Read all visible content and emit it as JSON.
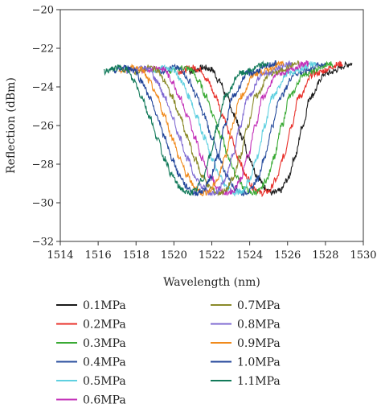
{
  "chart_data": {
    "type": "line",
    "title": "",
    "xlabel": "Wavelength (nm)",
    "ylabel": "Reflection (dBm)",
    "xlim": [
      1514,
      1530
    ],
    "ylim": [
      -32,
      -20
    ],
    "xticks": [
      "1514",
      "1516",
      "1518",
      "1520",
      "1522",
      "1524",
      "1526",
      "1528",
      "1530"
    ],
    "yticks": [
      "−20",
      "−22",
      "−24",
      "−26",
      "−28",
      "−30",
      "−32"
    ],
    "grid": false,
    "legend_position": "below",
    "series": [
      {
        "name": "0.1MPa",
        "color": "#1a1a1a",
        "x": [
          1520.8,
          1521.6,
          1522.0,
          1522.4,
          1522.8,
          1523.2,
          1523.6,
          1524.0,
          1524.4,
          1524.8,
          1525.2,
          1525.6,
          1526.0,
          1526.4,
          1526.8,
          1527.2,
          1528.0,
          1529.4
        ],
        "y": [
          -23.2,
          -23.0,
          -23.1,
          -23.7,
          -24.5,
          -25.5,
          -26.6,
          -27.7,
          -28.6,
          -29.2,
          -29.5,
          -29.4,
          -28.8,
          -27.6,
          -26.0,
          -24.5,
          -23.3,
          -22.8
        ]
      },
      {
        "name": "0.2MPa",
        "color": "#e8302a",
        "x": [
          1520.2,
          1521.0,
          1521.4,
          1521.8,
          1522.2,
          1522.6,
          1523.0,
          1523.4,
          1523.8,
          1524.2,
          1524.6,
          1525.0,
          1525.4,
          1525.8,
          1526.2,
          1526.6,
          1527.4,
          1528.9
        ],
        "y": [
          -23.2,
          -23.0,
          -23.1,
          -23.7,
          -24.5,
          -25.5,
          -26.6,
          -27.7,
          -28.6,
          -29.2,
          -29.5,
          -29.4,
          -28.8,
          -27.6,
          -26.0,
          -24.5,
          -23.3,
          -22.8
        ]
      },
      {
        "name": "0.3MPa",
        "color": "#3aaa35",
        "x": [
          1519.7,
          1520.5,
          1520.9,
          1521.3,
          1521.7,
          1522.1,
          1522.5,
          1522.9,
          1523.3,
          1523.7,
          1524.1,
          1524.5,
          1524.9,
          1525.3,
          1525.7,
          1526.1,
          1526.9,
          1528.4
        ],
        "y": [
          -23.2,
          -23.0,
          -23.1,
          -23.7,
          -24.5,
          -25.5,
          -26.6,
          -27.7,
          -28.6,
          -29.2,
          -29.5,
          -29.4,
          -28.8,
          -27.6,
          -26.0,
          -24.5,
          -23.3,
          -22.8
        ]
      },
      {
        "name": "0.4MPa",
        "color": "#2a4f9e",
        "x": [
          1519.2,
          1520.0,
          1520.4,
          1520.8,
          1521.2,
          1521.6,
          1522.0,
          1522.4,
          1522.8,
          1523.2,
          1523.6,
          1524.0,
          1524.4,
          1524.8,
          1525.2,
          1525.6,
          1526.4,
          1528.0
        ],
        "y": [
          -23.2,
          -23.0,
          -23.1,
          -23.7,
          -24.5,
          -25.5,
          -26.6,
          -27.7,
          -28.6,
          -29.2,
          -29.5,
          -29.4,
          -28.8,
          -27.6,
          -26.0,
          -24.5,
          -23.3,
          -22.8
        ]
      },
      {
        "name": "0.5MPa",
        "color": "#5fd0e0",
        "x": [
          1518.8,
          1519.6,
          1520.0,
          1520.4,
          1520.8,
          1521.2,
          1521.6,
          1522.0,
          1522.4,
          1522.8,
          1523.2,
          1523.6,
          1524.0,
          1524.4,
          1524.8,
          1525.2,
          1526.0,
          1527.5
        ],
        "y": [
          -23.2,
          -23.0,
          -23.1,
          -23.7,
          -24.5,
          -25.5,
          -26.6,
          -27.7,
          -28.6,
          -29.2,
          -29.5,
          -29.4,
          -28.8,
          -27.6,
          -26.0,
          -24.5,
          -23.3,
          -22.8
        ]
      },
      {
        "name": "0.6MPa",
        "color": "#c330b8",
        "x": [
          1518.3,
          1519.1,
          1519.5,
          1519.9,
          1520.3,
          1520.7,
          1521.1,
          1521.5,
          1521.9,
          1522.3,
          1522.7,
          1523.1,
          1523.5,
          1523.9,
          1524.3,
          1524.7,
          1525.5,
          1527.1
        ],
        "y": [
          -23.2,
          -23.0,
          -23.1,
          -23.7,
          -24.5,
          -25.5,
          -26.6,
          -27.7,
          -28.6,
          -29.2,
          -29.5,
          -29.4,
          -28.8,
          -27.6,
          -26.0,
          -24.5,
          -23.3,
          -22.8
        ]
      },
      {
        "name": "0.7MPa",
        "color": "#8a8a2a",
        "x": [
          1517.9,
          1518.7,
          1519.1,
          1519.5,
          1519.9,
          1520.3,
          1520.7,
          1521.1,
          1521.5,
          1521.9,
          1522.3,
          1522.7,
          1523.1,
          1523.5,
          1523.9,
          1524.3,
          1525.1,
          1526.6
        ],
        "y": [
          -23.2,
          -23.0,
          -23.1,
          -23.7,
          -24.5,
          -25.5,
          -26.6,
          -27.7,
          -28.6,
          -29.2,
          -29.5,
          -29.4,
          -28.8,
          -27.6,
          -26.0,
          -24.5,
          -23.3,
          -22.8
        ]
      },
      {
        "name": "0.8MPa",
        "color": "#7f6ad2",
        "x": [
          1517.5,
          1518.3,
          1518.7,
          1519.1,
          1519.5,
          1519.9,
          1520.3,
          1520.7,
          1521.1,
          1521.5,
          1521.9,
          1522.3,
          1522.7,
          1523.1,
          1523.5,
          1523.9,
          1524.7,
          1526.2
        ],
        "y": [
          -23.2,
          -23.0,
          -23.1,
          -23.7,
          -24.5,
          -25.5,
          -26.6,
          -27.7,
          -28.6,
          -29.2,
          -29.5,
          -29.4,
          -28.8,
          -27.6,
          -26.0,
          -24.5,
          -23.3,
          -22.8
        ]
      },
      {
        "name": "0.9MPa",
        "color": "#f08a1c",
        "x": [
          1517.1,
          1517.9,
          1518.3,
          1518.7,
          1519.1,
          1519.5,
          1519.9,
          1520.3,
          1520.7,
          1521.1,
          1521.5,
          1521.9,
          1522.3,
          1522.7,
          1523.1,
          1523.5,
          1524.3,
          1525.8
        ],
        "y": [
          -23.2,
          -23.0,
          -23.1,
          -23.7,
          -24.5,
          -25.5,
          -26.6,
          -27.7,
          -28.6,
          -29.2,
          -29.5,
          -29.4,
          -28.8,
          -27.6,
          -26.0,
          -24.5,
          -23.3,
          -22.8
        ]
      },
      {
        "name": "1.0MPa",
        "color": "#22459a",
        "x": [
          1516.7,
          1517.5,
          1517.9,
          1518.3,
          1518.7,
          1519.1,
          1519.5,
          1519.9,
          1520.3,
          1520.7,
          1521.1,
          1521.5,
          1521.9,
          1522.3,
          1522.7,
          1523.1,
          1523.9,
          1525.4
        ],
        "y": [
          -23.2,
          -23.0,
          -23.1,
          -23.7,
          -24.5,
          -25.5,
          -26.6,
          -27.7,
          -28.6,
          -29.2,
          -29.5,
          -29.4,
          -28.8,
          -27.6,
          -26.0,
          -24.5,
          -23.3,
          -22.8
        ]
      },
      {
        "name": "1.1MPa",
        "color": "#127a5a",
        "x": [
          1516.3,
          1517.1,
          1517.5,
          1517.9,
          1518.3,
          1518.7,
          1519.1,
          1519.5,
          1519.9,
          1520.3,
          1520.7,
          1521.1,
          1521.5,
          1521.9,
          1522.3,
          1522.7,
          1523.5,
          1525.0
        ],
        "y": [
          -23.2,
          -23.0,
          -23.1,
          -23.7,
          -24.5,
          -25.5,
          -26.6,
          -27.7,
          -28.6,
          -29.2,
          -29.5,
          -29.4,
          -28.8,
          -27.6,
          -26.0,
          -24.5,
          -23.3,
          -22.8
        ]
      }
    ]
  }
}
